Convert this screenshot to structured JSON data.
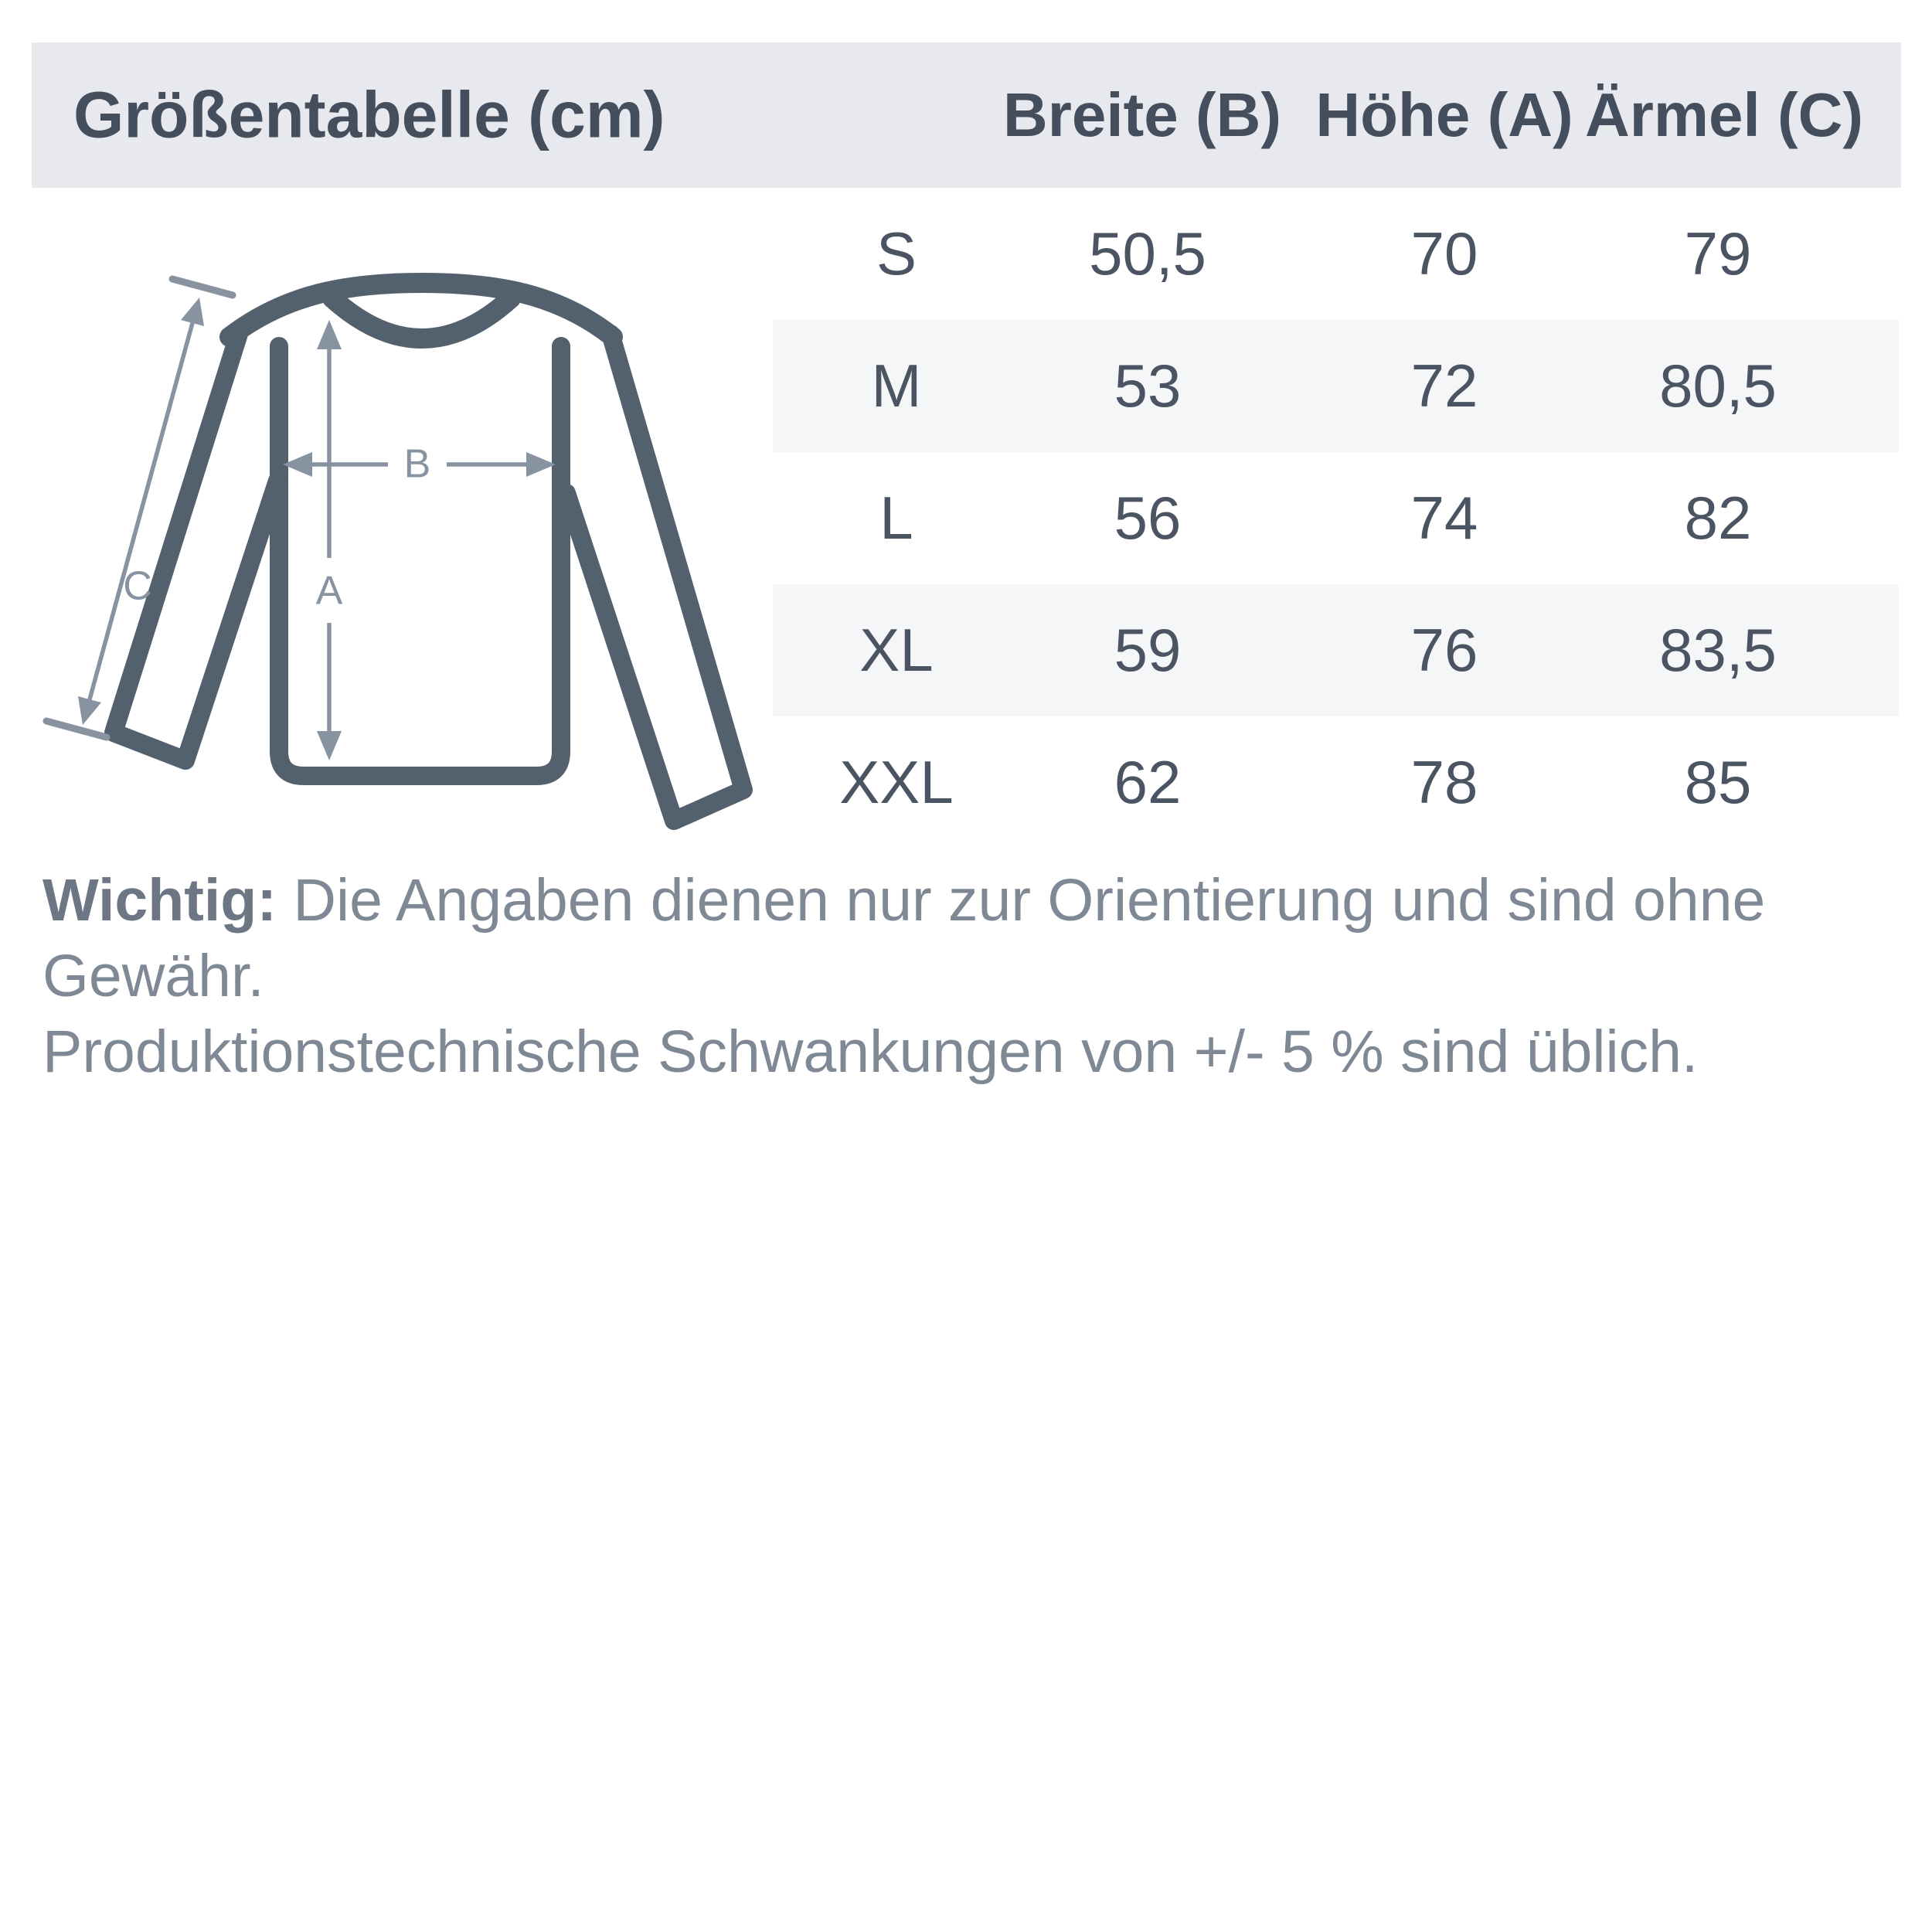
{
  "header": {
    "title": "Größentabelle (cm)",
    "columns": [
      "Breite (B)",
      "Höhe (A)",
      "Ärmel (C)"
    ]
  },
  "sizes": [
    {
      "size": "S",
      "breite": "50,5",
      "hoehe": "70",
      "aermel": "79"
    },
    {
      "size": "M",
      "breite": "53",
      "hoehe": "72",
      "aermel": "80,5"
    },
    {
      "size": "L",
      "breite": "56",
      "hoehe": "74",
      "aermel": "82"
    },
    {
      "size": "XL",
      "breite": "59",
      "hoehe": "76",
      "aermel": "83,5"
    },
    {
      "size": "XXL",
      "breite": "62",
      "hoehe": "78",
      "aermel": "85"
    }
  ],
  "note": {
    "label": "Wichtig:",
    "line1": "Die Angaben dienen nur zur Orientierung und sind ohne Gewähr.",
    "line2": "Produktionstechnische Schwankungen von +/- 5 % sind üblich."
  },
  "diagram": {
    "label_a": "A",
    "label_b": "B",
    "label_c": "C"
  },
  "colors": {
    "header_bg": "#e8e9ee",
    "header_text": "#454e5d",
    "cell_text": "#4b5462",
    "zebra_bg": "#f5f6f8",
    "shirt_outline": "#53606d",
    "dimension": "#8793a0",
    "note_text": "#7f8995"
  }
}
